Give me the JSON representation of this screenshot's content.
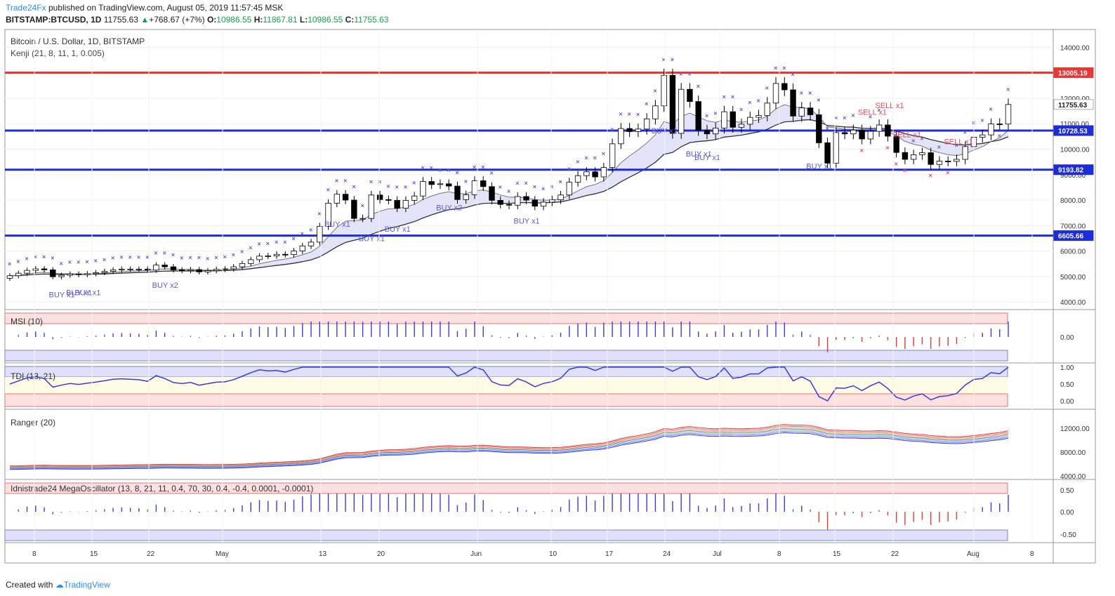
{
  "header": {
    "publisher": "Trade24Fx",
    "published_text": "published on TradingView.com, August 05, 2019 11:57:45 MSK",
    "symbol": "BITSTAMP:BTCUSD, 1D",
    "last": "11755.63",
    "change": "+768.67 (+7%)",
    "o_label": "O:",
    "o": "10986.55",
    "h_label": "H:",
    "h": "11867.81",
    "l_label": "L:",
    "l": "10986.55",
    "c_label": "C:",
    "c": "11755.63"
  },
  "footer": {
    "created_with": "Created with",
    "brand": "TradingView"
  },
  "colors": {
    "red_line": "#e53935",
    "blue_line": "#1e2cd6",
    "up": "#ffffff",
    "down": "#000000",
    "buy": "#5b5bdc",
    "sell": "#e84a5f"
  },
  "chart_data": [
    {
      "type": "candlestick",
      "title": "Bitcoin / U.S. Dollar, 1D, BITSTAMP",
      "subtitle": "Kenji (21, 8, 11, 1, 0.005)",
      "ylim": [
        3700,
        14700
      ],
      "y_ticks": [
        "14000.00",
        "13000.00",
        "12000.00",
        "11000.00",
        "10000.00",
        "9000.00",
        "8000.00",
        "7000.00",
        "6000.00",
        "5000.00",
        "4000.00"
      ],
      "x_tick_labels": [
        "8",
        "15",
        "22",
        "May",
        "13",
        "20",
        "Jun",
        "10",
        "17",
        "24",
        "Jul",
        "8",
        "15",
        "22",
        "Aug",
        "8"
      ],
      "price_tags": [
        {
          "label": "13005.19",
          "value": 13005.19,
          "color": "#e53935"
        },
        {
          "label": "11755.63",
          "value": 11755.63,
          "color": "#ffffff"
        },
        {
          "label": "10728.53",
          "value": 10728.53,
          "color": "#1e2cd6"
        },
        {
          "label": "9193.82",
          "value": 9193.82,
          "color": "#1e2cd6"
        },
        {
          "label": "6605.66",
          "value": 6605.66,
          "color": "#1e2cd6"
        }
      ],
      "horizontal_levels": [
        13005.19,
        10728.53,
        9193.82,
        6605.66
      ],
      "closes": [
        5030,
        5130,
        5240,
        5300,
        5260,
        4990,
        5050,
        5100,
        5070,
        5110,
        5150,
        5200,
        5260,
        5290,
        5290,
        5290,
        5250,
        5450,
        5380,
        5260,
        5230,
        5270,
        5180,
        5230,
        5280,
        5300,
        5380,
        5510,
        5660,
        5800,
        5810,
        5870,
        5860,
        6000,
        6200,
        6350,
        6970,
        7880,
        8230,
        8000,
        7280,
        7280,
        8200,
        8020,
        7990,
        7680,
        7990,
        8160,
        8730,
        8610,
        8640,
        8550,
        8020,
        8210,
        8760,
        8530,
        7990,
        7830,
        7800,
        8140,
        8000,
        7760,
        7920,
        8010,
        8200,
        8700,
        8960,
        9110,
        8910,
        9280,
        10210,
        10810,
        10690,
        10790,
        11190,
        11700,
        12900,
        10620,
        12350,
        11870,
        10740,
        10600,
        10830,
        11470,
        10860,
        10980,
        11250,
        11320,
        11810,
        12580,
        12330,
        11300,
        11620,
        11350,
        10250,
        9450,
        10650,
        10600,
        10750,
        10400,
        10700,
        10950,
        10510,
        9870,
        9600,
        9780,
        9860,
        9400,
        9530,
        9520,
        9600,
        10100,
        10470,
        10560,
        10990,
        10986,
        11755
      ]
    },
    {
      "type": "bar",
      "title": "MSI (10)",
      "y_ticks": [
        "0.00"
      ]
    },
    {
      "type": "line",
      "title": "TDI (13, 21)",
      "y_ticks": [
        "1.00",
        "0.50",
        "0.00"
      ]
    },
    {
      "type": "line",
      "title": "Ranger (20)",
      "y_ticks": [
        "12000.00",
        "8000.00",
        "4000.00"
      ]
    },
    {
      "type": "bar",
      "title": "Idnistrade24 MegaOscillator (13, 8, 21, 11, 0.4, 70, 30, 0.4, -0.4, 0.0001, -0.0001)",
      "y_ticks": [
        "0.50",
        "0.00",
        "-0.50"
      ]
    }
  ],
  "signals": {
    "buy_labels": [
      "BUY x1",
      "BUY x1",
      "BUY x1",
      "BUY x2",
      "BUY x1",
      "BUY x1",
      "BUY x1",
      "BUY x2",
      "BUY x1",
      "BUY x1",
      "BUY x1",
      "BUY x1",
      "BUY x1"
    ],
    "sell_labels": [
      "SELL x1",
      "SELL x1",
      "SELL x1",
      "SELL x1"
    ]
  }
}
